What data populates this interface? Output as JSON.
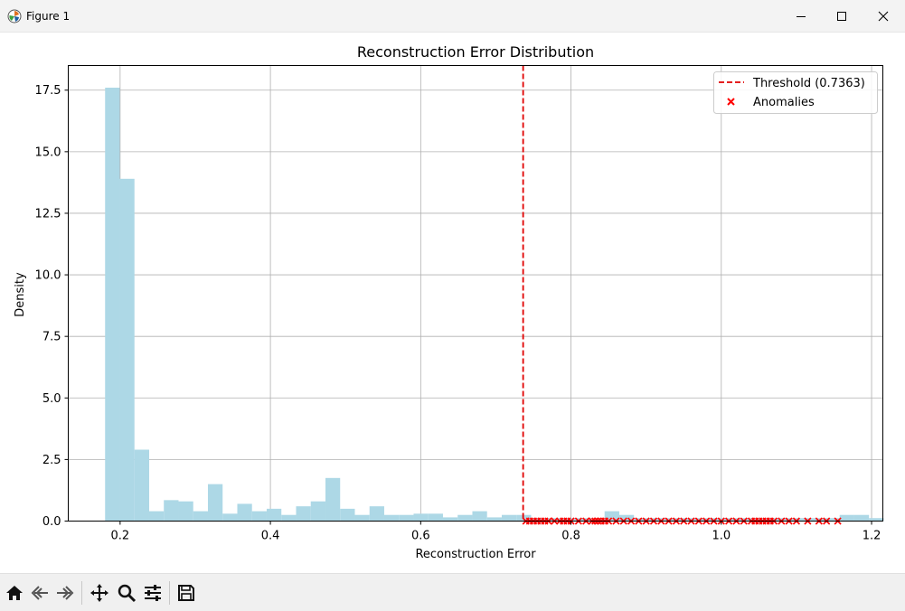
{
  "window": {
    "title": "Figure 1"
  },
  "toolbar": {
    "tools": [
      "home-icon",
      "back-icon",
      "forward-icon",
      "pan-icon",
      "zoom-icon",
      "configure-subplots-icon",
      "save-icon"
    ]
  },
  "colors": {
    "hist": "#add8e6",
    "threshold": "#e00000",
    "anomaly": "#ff0000",
    "grid": "#b0b0b0"
  },
  "chart_data": {
    "type": "bar",
    "title": "Reconstruction Error Distribution",
    "xlabel": "Reconstruction Error",
    "ylabel": "Density",
    "xlim": [
      0.131,
      1.215
    ],
    "ylim": [
      0,
      18.5
    ],
    "xticks": [
      0.2,
      0.4,
      0.6,
      0.8,
      1.0,
      1.2
    ],
    "xtick_labels": [
      "0.2",
      "0.4",
      "0.6",
      "0.8",
      "1.0",
      "1.2"
    ],
    "yticks": [
      0,
      2.5,
      5,
      7.5,
      10,
      12.5,
      15,
      17.5
    ],
    "ytick_labels": [
      "0.0",
      "2.5",
      "5.0",
      "7.5",
      "10.0",
      "12.5",
      "15.0",
      "17.5"
    ],
    "grid": true,
    "legend_position": "top-right",
    "histogram": {
      "bin_start": 0.18,
      "bin_width": 0.01955,
      "values": [
        17.6,
        13.9,
        2.9,
        0.4,
        0.85,
        0.8,
        0.4,
        1.5,
        0.3,
        0.7,
        0.4,
        0.5,
        0.25,
        0.6,
        0.8,
        1.75,
        0.5,
        0.25,
        0.6,
        0.25,
        0.25,
        0.3,
        0.3,
        0.15,
        0.25,
        0.4,
        0.15,
        0.25,
        0.25,
        0.12,
        0.12,
        0.12,
        0.12,
        0.12,
        0.4,
        0.25,
        0.12,
        0.12,
        0.12,
        0.12,
        0.12,
        0.12,
        0.12,
        0.12,
        0.12,
        0.12,
        0.12,
        0.12,
        0.12,
        0.12,
        0.25,
        0.25,
        0.12
      ]
    },
    "threshold": {
      "value": 0.7363,
      "label": "Threshold (0.7363)"
    },
    "anomalies": {
      "label": "Anomalies",
      "x": [
        0.74,
        0.745,
        0.75,
        0.755,
        0.76,
        0.765,
        0.77,
        0.778,
        0.785,
        0.79,
        0.795,
        0.8,
        0.81,
        0.82,
        0.828,
        0.832,
        0.836,
        0.84,
        0.845,
        0.85,
        0.86,
        0.87,
        0.88,
        0.89,
        0.9,
        0.91,
        0.92,
        0.93,
        0.94,
        0.95,
        0.96,
        0.97,
        0.98,
        0.99,
        1.0,
        1.01,
        1.02,
        1.03,
        1.04,
        1.045,
        1.05,
        1.055,
        1.06,
        1.065,
        1.07,
        1.08,
        1.09,
        1.1,
        1.115,
        1.13,
        1.14,
        1.155
      ],
      "y": 0
    }
  }
}
